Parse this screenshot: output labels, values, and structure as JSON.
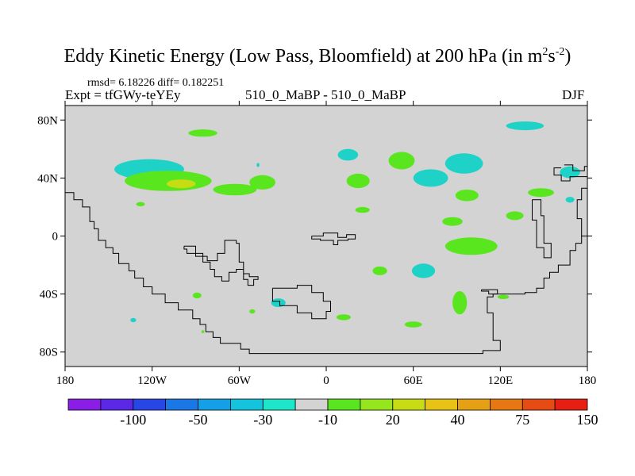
{
  "header": {
    "title": "Eddy Kinetic Energy (Low Pass, Bloomfield) at 200 hPa (in m",
    "title_sup1": "2",
    "title_mid": "s",
    "title_sup2": "-2",
    "title_end": ")",
    "stats": "rmsd= 6.18226 diff= 0.182251",
    "expt": "Expt = tfGWy-teYEy",
    "case": "510_0_MaBP - 510_0_MaBP",
    "season": "DJF"
  },
  "chart_data": {
    "type": "heatmap",
    "title": "Eddy Kinetic Energy (Low Pass, Bloomfield) at 200 hPa (in m^2 s^-2)",
    "projection": "cylindrical equidistant",
    "xlim": [
      -180,
      180
    ],
    "ylim": [
      -90,
      90
    ],
    "x_tick_values": [
      -180,
      -120,
      -60,
      0,
      60,
      120,
      180
    ],
    "x_tick_labels": [
      "180",
      "120W",
      "60W",
      "0",
      "60E",
      "120E",
      "180"
    ],
    "y_tick_values": [
      80,
      40,
      0,
      -40,
      -80
    ],
    "y_tick_labels": [
      "80N",
      "40N",
      "0",
      "40S",
      "80S"
    ],
    "background_color": "#d3d3d3",
    "colorbar": {
      "colors": [
        "#8a1ee6",
        "#5a28e6",
        "#2846e6",
        "#1a78e6",
        "#14a0e6",
        "#14c3dc",
        "#1ee6c8",
        "#d3d3d3",
        "#5ae61e",
        "#96e61e",
        "#c8dc14",
        "#e6c314",
        "#e6a014",
        "#e67814",
        "#e64b14",
        "#e61e14"
      ],
      "shown_labels": [
        "-100",
        "-50",
        "-30",
        "-10",
        "20",
        "40",
        "75",
        "150"
      ]
    },
    "features": [
      {
        "lon": -122,
        "lat": 46,
        "rlon": 24,
        "rlat": 7,
        "level": "teal",
        "value": -12
      },
      {
        "lon": -109,
        "lat": 38,
        "rlon": 30,
        "rlat": 7,
        "level": "lime",
        "value": 14
      },
      {
        "lon": -100,
        "lat": 36,
        "rlon": 10,
        "rlat": 3,
        "level": "yellow",
        "value": 42
      },
      {
        "lon": -128,
        "lat": 22,
        "rlon": 3,
        "rlat": 1.5,
        "level": "lime",
        "value": 12
      },
      {
        "lon": -63,
        "lat": 32,
        "rlon": 15,
        "rlat": 4,
        "level": "lime",
        "value": 13
      },
      {
        "lon": -44,
        "lat": 37,
        "rlon": 9,
        "rlat": 5,
        "level": "lime",
        "value": 12
      },
      {
        "lon": -85,
        "lat": 71,
        "rlon": 10,
        "rlat": 2.5,
        "level": "lime",
        "value": 11
      },
      {
        "lon": -47,
        "lat": 49,
        "rlon": 1,
        "rlat": 1.5,
        "level": "teal",
        "value": -11
      },
      {
        "lon": 15,
        "lat": 56,
        "rlon": 7,
        "rlat": 4,
        "level": "teal",
        "value": -11
      },
      {
        "lon": 52,
        "lat": 52,
        "rlon": 9,
        "rlat": 6,
        "level": "lime",
        "value": 12
      },
      {
        "lon": 22,
        "lat": 38,
        "rlon": 8,
        "rlat": 5,
        "level": "lime",
        "value": 12
      },
      {
        "lon": 25,
        "lat": 18,
        "rlon": 5,
        "rlat": 2,
        "level": "lime",
        "value": 11
      },
      {
        "lon": 72,
        "lat": 40,
        "rlon": 12,
        "rlat": 6,
        "level": "teal",
        "value": -12
      },
      {
        "lon": 95,
        "lat": 50,
        "rlon": 13,
        "rlat": 7,
        "level": "teal",
        "value": -11
      },
      {
        "lon": 97,
        "lat": 28,
        "rlon": 8,
        "rlat": 4,
        "level": "lime",
        "value": 12
      },
      {
        "lon": 87,
        "lat": 10,
        "rlon": 7,
        "rlat": 3,
        "level": "lime",
        "value": 11
      },
      {
        "lon": 130,
        "lat": 14,
        "rlon": 6,
        "rlat": 3,
        "level": "lime",
        "value": 11
      },
      {
        "lon": 148,
        "lat": 30,
        "rlon": 9,
        "rlat": 3,
        "level": "lime",
        "value": 11
      },
      {
        "lon": 100,
        "lat": -7,
        "rlon": 18,
        "rlat": 6,
        "level": "lime",
        "value": 12
      },
      {
        "lon": 137,
        "lat": 76,
        "rlon": 13,
        "rlat": 3,
        "level": "teal",
        "value": -11
      },
      {
        "lon": 168,
        "lat": 44,
        "rlon": 7,
        "rlat": 4,
        "level": "teal",
        "value": -11
      },
      {
        "lon": 168,
        "lat": 25,
        "rlon": 3,
        "rlat": 2,
        "level": "teal",
        "value": -11
      },
      {
        "lon": 67,
        "lat": -24,
        "rlon": 8,
        "rlat": 5,
        "level": "teal",
        "value": -11
      },
      {
        "lon": 37,
        "lat": -24,
        "rlon": 5,
        "rlat": 3,
        "level": "lime",
        "value": 11
      },
      {
        "lon": 92,
        "lat": -46,
        "rlon": 5,
        "rlat": 8,
        "level": "lime",
        "value": 12
      },
      {
        "lon": 60,
        "lat": -61,
        "rlon": 6,
        "rlat": 2,
        "level": "lime",
        "value": 11
      },
      {
        "lon": 12,
        "lat": -56,
        "rlon": 5,
        "rlat": 2,
        "level": "lime",
        "value": 11
      },
      {
        "lon": -33,
        "lat": -46,
        "rlon": 5,
        "rlat": 3,
        "level": "teal",
        "value": -11
      },
      {
        "lon": -89,
        "lat": -41,
        "rlon": 3,
        "rlat": 2,
        "level": "lime",
        "value": 11
      },
      {
        "lon": -51,
        "lat": -52,
        "rlon": 2,
        "rlat": 1.5,
        "level": "lime",
        "value": 11
      },
      {
        "lon": 122,
        "lat": -42,
        "rlon": 4,
        "rlat": 1.5,
        "level": "lime",
        "value": 11
      },
      {
        "lon": -133,
        "lat": -58,
        "rlon": 2,
        "rlat": 1.5,
        "level": "teal",
        "value": -11
      },
      {
        "lon": -85,
        "lat": -66,
        "rlon": 1,
        "rlat": 1,
        "level": "lime",
        "value": 11
      }
    ],
    "coastlines": [
      [
        [
          -180,
          30
        ],
        [
          -174,
          30
        ],
        [
          -174,
          25
        ],
        [
          -168,
          25
        ],
        [
          -168,
          20
        ],
        [
          -163,
          20
        ],
        [
          -163,
          10
        ],
        [
          -160,
          10
        ],
        [
          -160,
          5
        ],
        [
          -157,
          5
        ],
        [
          -157,
          -3
        ],
        [
          -152,
          -3
        ],
        [
          -152,
          -8
        ],
        [
          -147,
          -8
        ],
        [
          -147,
          -12
        ],
        [
          -143,
          -12
        ],
        [
          -143,
          -19
        ],
        [
          -136,
          -19
        ],
        [
          -136,
          -24
        ],
        [
          -132,
          -24
        ],
        [
          -132,
          -29
        ],
        [
          -126,
          -29
        ],
        [
          -126,
          -35
        ],
        [
          -120,
          -35
        ],
        [
          -120,
          -40
        ],
        [
          -111,
          -40
        ],
        [
          -111,
          -46
        ],
        [
          -102,
          -46
        ],
        [
          -102,
          -51
        ],
        [
          -92,
          -51
        ],
        [
          -92,
          -57
        ],
        [
          -87,
          -57
        ],
        [
          -87,
          -61
        ],
        [
          -83,
          -61
        ],
        [
          -83,
          -66
        ],
        [
          -78,
          -66
        ],
        [
          -78,
          -70
        ],
        [
          -73,
          -70
        ],
        [
          -73,
          -74
        ],
        [
          -59,
          -74
        ],
        [
          -59,
          -78
        ],
        [
          -53,
          -78
        ],
        [
          -53,
          -81
        ],
        [
          108,
          -81
        ],
        [
          108,
          -79
        ],
        [
          120,
          -79
        ],
        [
          120,
          -72
        ],
        [
          115,
          -72
        ],
        [
          115,
          -53
        ],
        [
          111,
          -53
        ],
        [
          111,
          -42
        ],
        [
          115,
          -42
        ],
        [
          115,
          -40
        ],
        [
          137,
          -40
        ],
        [
          137,
          -39
        ],
        [
          145,
          -39
        ],
        [
          145,
          -36
        ],
        [
          150,
          -36
        ],
        [
          150,
          -29
        ],
        [
          154,
          -29
        ],
        [
          154,
          -25
        ],
        [
          160,
          -25
        ],
        [
          160,
          -20
        ],
        [
          168,
          -20
        ],
        [
          168,
          -10
        ],
        [
          172,
          -10
        ],
        [
          172,
          -5
        ],
        [
          176,
          -5
        ],
        [
          176,
          0
        ],
        [
          180,
          0
        ]
      ],
      [
        [
          180,
          0
        ],
        [
          176,
          0
        ],
        [
          176,
          12
        ],
        [
          173,
          12
        ],
        [
          173,
          25
        ],
        [
          176,
          25
        ],
        [
          176,
          33
        ],
        [
          180,
          33
        ]
      ],
      [
        [
          -180,
          -90
        ],
        [
          180,
          -90
        ]
      ]
    ],
    "land_outlines": [
      [
        [
          -98,
          -7
        ],
        [
          -90,
          -7
        ],
        [
          -90,
          -14
        ],
        [
          -82,
          -14
        ],
        [
          -82,
          -17
        ],
        [
          -75,
          -17
        ],
        [
          -75,
          -12
        ],
        [
          -70,
          -12
        ],
        [
          -70,
          -3
        ],
        [
          -62,
          -3
        ],
        [
          -62,
          -5
        ],
        [
          -60,
          -5
        ],
        [
          -60,
          -18
        ],
        [
          -57,
          -18
        ],
        [
          -57,
          -30
        ],
        [
          -54,
          -30
        ],
        [
          -54,
          -34
        ],
        [
          -50,
          -34
        ],
        [
          -50,
          -30
        ],
        [
          -47,
          -30
        ],
        [
          -47,
          -28
        ],
        [
          -53,
          -28
        ],
        [
          -53,
          -26
        ],
        [
          -57,
          -26
        ],
        [
          -57,
          -23
        ],
        [
          -62,
          -23
        ],
        [
          -62,
          -25
        ],
        [
          -67,
          -25
        ],
        [
          -67,
          -31
        ],
        [
          -72,
          -31
        ],
        [
          -72,
          -28
        ],
        [
          -77,
          -28
        ],
        [
          -77,
          -23
        ],
        [
          -80,
          -23
        ],
        [
          -80,
          -18
        ],
        [
          -85,
          -18
        ],
        [
          -85,
          -12
        ],
        [
          -96,
          -12
        ],
        [
          -96,
          -9
        ],
        [
          -98,
          -9
        ],
        [
          -98,
          -7
        ]
      ],
      [
        [
          -37,
          -36
        ],
        [
          -20,
          -36
        ],
        [
          -20,
          -34
        ],
        [
          -10,
          -34
        ],
        [
          -10,
          -39
        ],
        [
          -2,
          -39
        ],
        [
          -2,
          -45
        ],
        [
          3,
          -45
        ],
        [
          3,
          -52
        ],
        [
          0,
          -52
        ],
        [
          0,
          -57
        ],
        [
          -10,
          -57
        ],
        [
          -10,
          -53
        ],
        [
          -20,
          -53
        ],
        [
          -20,
          -48
        ],
        [
          -32,
          -48
        ],
        [
          -32,
          -45
        ],
        [
          -37,
          -45
        ],
        [
          -37,
          -36
        ]
      ],
      [
        [
          -10,
          0
        ],
        [
          -2,
          0
        ],
        [
          -2,
          2
        ],
        [
          8,
          2
        ],
        [
          8,
          -1
        ],
        [
          14,
          -1
        ],
        [
          14,
          1
        ],
        [
          20,
          1
        ],
        [
          20,
          -2
        ],
        [
          15,
          -2
        ],
        [
          15,
          -3
        ],
        [
          8,
          -3
        ],
        [
          8,
          -6
        ],
        [
          5,
          -6
        ],
        [
          5,
          -3
        ],
        [
          -4,
          -3
        ],
        [
          -4,
          -2
        ],
        [
          -10,
          -2
        ],
        [
          -10,
          0
        ]
      ],
      [
        [
          164,
          49
        ],
        [
          170,
          49
        ],
        [
          170,
          45
        ],
        [
          178,
          45
        ],
        [
          178,
          48
        ],
        [
          180,
          48
        ]
      ],
      [
        [
          180,
          41
        ],
        [
          168,
          41
        ],
        [
          168,
          38
        ],
        [
          162,
          38
        ],
        [
          162,
          42
        ],
        [
          157,
          42
        ],
        [
          157,
          47
        ],
        [
          162,
          47
        ]
      ],
      [
        [
          142,
          25
        ],
        [
          148,
          25
        ],
        [
          148,
          14
        ],
        [
          150,
          14
        ],
        [
          150,
          -5
        ],
        [
          155,
          -5
        ],
        [
          155,
          -15
        ],
        [
          150,
          -15
        ],
        [
          150,
          -8
        ],
        [
          145,
          -8
        ],
        [
          145,
          11
        ],
        [
          142,
          11
        ],
        [
          142,
          25
        ]
      ],
      [
        [
          107,
          -37
        ],
        [
          118,
          -37
        ],
        [
          118,
          -40
        ],
        [
          112,
          -40
        ],
        [
          112,
          -38
        ],
        [
          107,
          -38
        ],
        [
          107,
          -37
        ]
      ]
    ]
  },
  "colors": {
    "land_line": "#000000",
    "ocean_fill": "#d3d3d3",
    "teal_fill": "#1ed2c8",
    "lime_fill": "#5ae61e",
    "yellow_fill": "#c8dc14"
  }
}
